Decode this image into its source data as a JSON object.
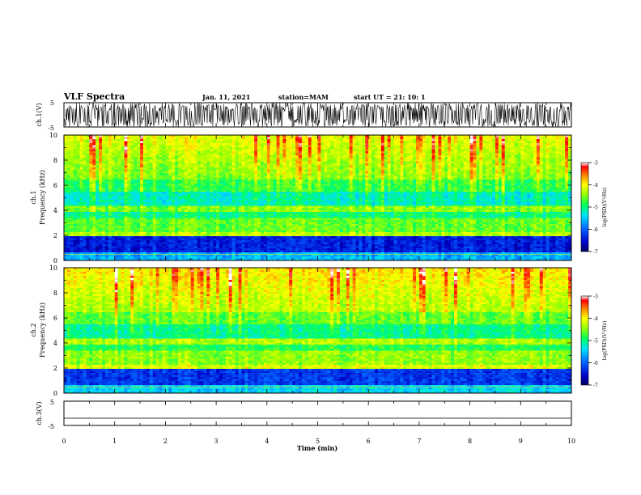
{
  "header": {
    "title": "VLF Spectra",
    "date": "Jan. 11, 2021",
    "station": "station=MAM",
    "start_ut": "start UT =  21: 10: 1"
  },
  "chart_data": [
    {
      "type": "line",
      "title": "",
      "ylabel": "ch.1(V)",
      "ylim": [
        -5,
        5
      ],
      "ytick_labels": [
        "5",
        "-5"
      ],
      "xlim": [
        0,
        10
      ],
      "description_values": "dense oscillating waveform filling the full -5 to 5 V range"
    },
    {
      "type": "heatmap",
      "ylabel_top": "ch.1",
      "ylabel": "Frequency (kHz)",
      "ylim": [
        0,
        10
      ],
      "ytick_labels": [
        "0",
        "2",
        "4",
        "6",
        "8",
        "10"
      ],
      "xlim": [
        0,
        10
      ],
      "colorbar": {
        "label": "log(PSD)(V²/Hz)",
        "range": [
          -7,
          -3
        ],
        "tick_labels": [
          "-3",
          "-4",
          "-5",
          "-6",
          "-7"
        ]
      }
    },
    {
      "type": "heatmap",
      "ylabel_top": "ch.2",
      "ylabel": "Frequency (kHz)",
      "ylim": [
        0,
        10
      ],
      "ytick_labels": [
        "0",
        "2",
        "4",
        "6",
        "8",
        "10"
      ],
      "xlim": [
        0,
        10
      ],
      "colorbar": {
        "label": "log(PSD)(V²/Hz)",
        "range": [
          -7,
          -3
        ],
        "tick_labels": [
          "-3",
          "-4",
          "-5",
          "-6",
          "-7"
        ]
      }
    },
    {
      "type": "line",
      "ylabel": "ch.3(V)",
      "ylim": [
        -5,
        5
      ],
      "ytick_labels": [
        "5",
        "-5"
      ],
      "xlim": [
        0,
        10
      ],
      "xlabel": "Time (min)",
      "xtick_labels": [
        "0",
        "1",
        "2",
        "3",
        "4",
        "5",
        "6",
        "7",
        "8",
        "9",
        "10"
      ],
      "constant_value": -2
    }
  ]
}
